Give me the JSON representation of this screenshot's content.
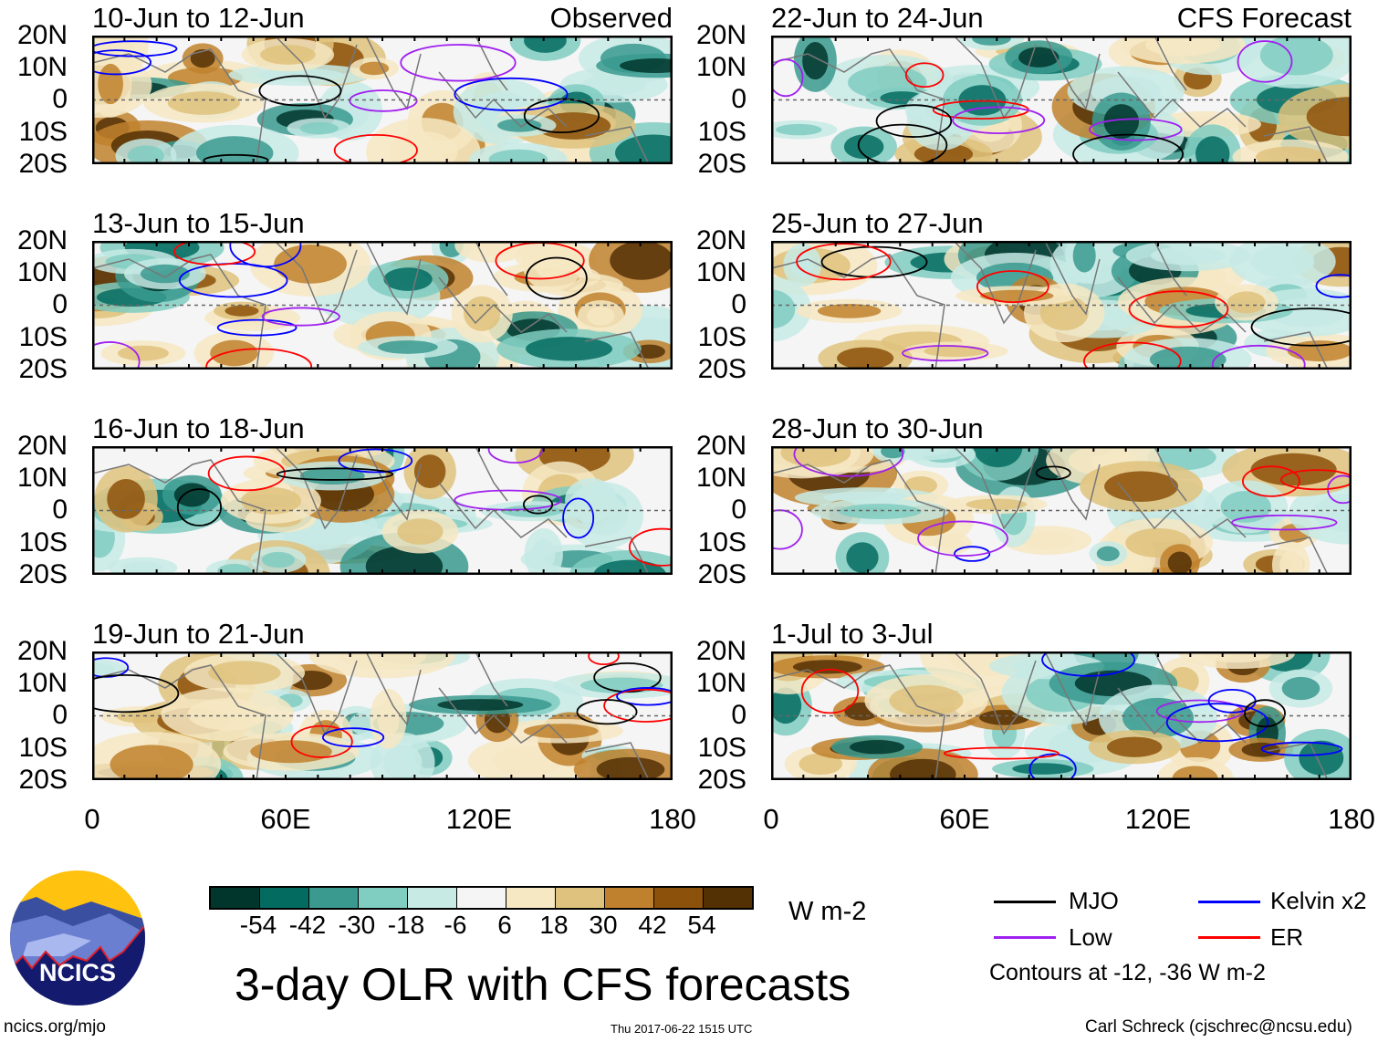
{
  "panels": [
    {
      "title": "10-Jun to 12-Jun",
      "tag": "Observed",
      "column": "observed",
      "seed": 11
    },
    {
      "title": "22-Jun to 24-Jun",
      "tag": "CFS Forecast",
      "column": "forecast",
      "seed": 23
    },
    {
      "title": "13-Jun to 15-Jun",
      "tag": "",
      "column": "observed",
      "seed": 37
    },
    {
      "title": "25-Jun to 27-Jun",
      "tag": "",
      "column": "forecast",
      "seed": 41
    },
    {
      "title": "16-Jun to 18-Jun",
      "tag": "",
      "column": "observed",
      "seed": 53
    },
    {
      "title": "28-Jun to 30-Jun",
      "tag": "",
      "column": "forecast",
      "seed": 67
    },
    {
      "title": "19-Jun to 21-Jun",
      "tag": "",
      "column": "observed",
      "seed": 79
    },
    {
      "title": "1-Jul to 3-Jul",
      "tag": "",
      "column": "forecast",
      "seed": 83
    }
  ],
  "lat_labels": [
    "20N",
    "10N",
    "0",
    "10S",
    "20S"
  ],
  "lon_labels": [
    "0",
    "60E",
    "120E",
    "180"
  ],
  "colorbar": {
    "colors": [
      "#01362d",
      "#046b60",
      "#3a9a8f",
      "#80cdc1",
      "#c7eae5",
      "#f5f5f5",
      "#f6e8c3",
      "#dfc27d",
      "#bf812d",
      "#8c510a",
      "#543005"
    ],
    "labels": [
      "-54",
      "-42",
      "-30",
      "-18",
      "-6",
      "6",
      "18",
      "30",
      "42",
      "54"
    ],
    "units": "W m-2"
  },
  "legend": {
    "items": [
      {
        "label": "MJO",
        "color": "#000000"
      },
      {
        "label": "Kelvin x2",
        "color": "#0000ff"
      },
      {
        "label": "Low",
        "color": "#a020f0"
      },
      {
        "label": "ER",
        "color": "#ff0000"
      }
    ],
    "note": "Contours at -12, -36 W m-2"
  },
  "title": "3-day OLR with CFS forecasts",
  "logo_text": "NCICS",
  "url": "ncics.org/mjo",
  "timestamp": "Thu 2017-06-22 1515 UTC",
  "credit": "Carl Schreck (cjschrec@ncsu.edu)"
}
